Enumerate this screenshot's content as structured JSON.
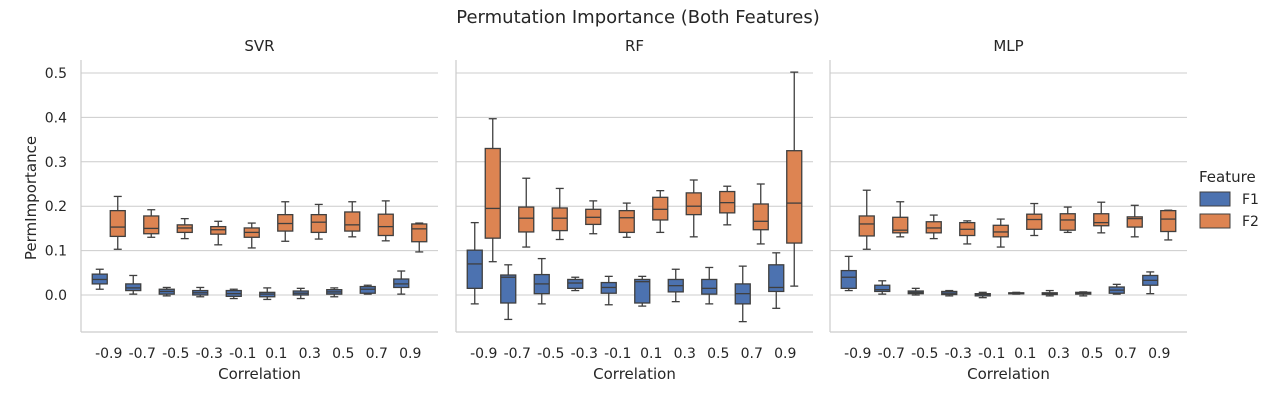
{
  "chart_data": {
    "type": "box",
    "title": "Permutation Importance (Both Features)",
    "xlabel": "Correlation",
    "ylabel": "PermImportance",
    "categories": [
      "-0.9",
      "-0.7",
      "-0.5",
      "-0.3",
      "-0.1",
      "0.1",
      "0.3",
      "0.5",
      "0.7",
      "0.9"
    ],
    "yticks": [
      "0.0",
      "0.1",
      "0.2",
      "0.3",
      "0.4",
      "0.5"
    ],
    "ylim": [
      -0.085,
      0.53
    ],
    "grid": "horizontal",
    "legend": {
      "title": "Feature",
      "placement": "right",
      "entries": [
        "F1",
        "F2"
      ]
    },
    "colors": {
      "F1": "#4c72b0",
      "F2": "#dd8452"
    },
    "panels": [
      {
        "title": "SVR",
        "series": [
          {
            "name": "F1",
            "boxes": [
              {
                "wlo": 0.013,
                "q1": 0.025,
                "med": 0.035,
                "q3": 0.047,
                "whi": 0.058
              },
              {
                "wlo": 0.002,
                "q1": 0.01,
                "med": 0.016,
                "q3": 0.025,
                "whi": 0.044
              },
              {
                "wlo": -0.002,
                "q1": 0.002,
                "med": 0.008,
                "q3": 0.013,
                "whi": 0.017
              },
              {
                "wlo": -0.004,
                "q1": 0.0,
                "med": 0.005,
                "q3": 0.01,
                "whi": 0.017
              },
              {
                "wlo": -0.008,
                "q1": -0.003,
                "med": 0.003,
                "q3": 0.01,
                "whi": 0.013
              },
              {
                "wlo": -0.01,
                "q1": -0.004,
                "med": 0.002,
                "q3": 0.006,
                "whi": 0.016
              },
              {
                "wlo": -0.008,
                "q1": 0.0,
                "med": 0.004,
                "q3": 0.009,
                "whi": 0.015
              },
              {
                "wlo": -0.004,
                "q1": 0.002,
                "med": 0.007,
                "q3": 0.012,
                "whi": 0.016
              },
              {
                "wlo": 0.002,
                "q1": 0.004,
                "med": 0.013,
                "q3": 0.019,
                "whi": 0.022
              },
              {
                "wlo": 0.002,
                "q1": 0.017,
                "med": 0.025,
                "q3": 0.036,
                "whi": 0.054
              }
            ]
          },
          {
            "name": "F2",
            "boxes": [
              {
                "wlo": 0.103,
                "q1": 0.132,
                "med": 0.153,
                "q3": 0.19,
                "whi": 0.222
              },
              {
                "wlo": 0.13,
                "q1": 0.138,
                "med": 0.15,
                "q3": 0.178,
                "whi": 0.192
              },
              {
                "wlo": 0.127,
                "q1": 0.141,
                "med": 0.151,
                "q3": 0.158,
                "whi": 0.172
              },
              {
                "wlo": 0.113,
                "q1": 0.137,
                "med": 0.147,
                "q3": 0.154,
                "whi": 0.166
              },
              {
                "wlo": 0.106,
                "q1": 0.13,
                "med": 0.141,
                "q3": 0.151,
                "whi": 0.162
              },
              {
                "wlo": 0.121,
                "q1": 0.144,
                "med": 0.161,
                "q3": 0.181,
                "whi": 0.21
              },
              {
                "wlo": 0.126,
                "q1": 0.141,
                "med": 0.164,
                "q3": 0.181,
                "whi": 0.204
              },
              {
                "wlo": 0.131,
                "q1": 0.144,
                "med": 0.158,
                "q3": 0.187,
                "whi": 0.21
              },
              {
                "wlo": 0.122,
                "q1": 0.134,
                "med": 0.154,
                "q3": 0.182,
                "whi": 0.212
              },
              {
                "wlo": 0.097,
                "q1": 0.12,
                "med": 0.149,
                "q3": 0.16,
                "whi": 0.162
              }
            ]
          }
        ]
      },
      {
        "title": "RF",
        "series": [
          {
            "name": "F1",
            "boxes": [
              {
                "wlo": -0.02,
                "q1": 0.015,
                "med": 0.07,
                "q3": 0.101,
                "whi": 0.163
              },
              {
                "wlo": -0.055,
                "q1": -0.018,
                "med": 0.04,
                "q3": 0.045,
                "whi": 0.068
              },
              {
                "wlo": -0.02,
                "q1": 0.003,
                "med": 0.025,
                "q3": 0.046,
                "whi": 0.082
              },
              {
                "wlo": 0.01,
                "q1": 0.015,
                "med": 0.027,
                "q3": 0.035,
                "whi": 0.04
              },
              {
                "wlo": -0.022,
                "q1": 0.004,
                "med": 0.017,
                "q3": 0.028,
                "whi": 0.042
              },
              {
                "wlo": -0.025,
                "q1": -0.018,
                "med": 0.03,
                "q3": 0.035,
                "whi": 0.042
              },
              {
                "wlo": -0.015,
                "q1": 0.007,
                "med": 0.021,
                "q3": 0.035,
                "whi": 0.058
              },
              {
                "wlo": -0.02,
                "q1": 0.002,
                "med": 0.015,
                "q3": 0.035,
                "whi": 0.062
              },
              {
                "wlo": -0.06,
                "q1": -0.02,
                "med": 0.003,
                "q3": 0.025,
                "whi": 0.065
              },
              {
                "wlo": -0.03,
                "q1": 0.008,
                "med": 0.017,
                "q3": 0.068,
                "whi": 0.095
              }
            ]
          },
          {
            "name": "F2",
            "boxes": [
              {
                "wlo": 0.075,
                "q1": 0.128,
                "med": 0.195,
                "q3": 0.33,
                "whi": 0.397
              },
              {
                "wlo": 0.108,
                "q1": 0.142,
                "med": 0.173,
                "q3": 0.198,
                "whi": 0.263
              },
              {
                "wlo": 0.125,
                "q1": 0.145,
                "med": 0.173,
                "q3": 0.196,
                "whi": 0.24
              },
              {
                "wlo": 0.138,
                "q1": 0.159,
                "med": 0.175,
                "q3": 0.193,
                "whi": 0.212
              },
              {
                "wlo": 0.13,
                "q1": 0.141,
                "med": 0.174,
                "q3": 0.19,
                "whi": 0.207
              },
              {
                "wlo": 0.141,
                "q1": 0.169,
                "med": 0.193,
                "q3": 0.22,
                "whi": 0.235
              },
              {
                "wlo": 0.131,
                "q1": 0.181,
                "med": 0.2,
                "q3": 0.23,
                "whi": 0.259
              },
              {
                "wlo": 0.158,
                "q1": 0.185,
                "med": 0.208,
                "q3": 0.233,
                "whi": 0.245
              },
              {
                "wlo": 0.115,
                "q1": 0.147,
                "med": 0.166,
                "q3": 0.205,
                "whi": 0.25
              },
              {
                "wlo": 0.02,
                "q1": 0.117,
                "med": 0.207,
                "q3": 0.325,
                "whi": 0.502
              }
            ]
          }
        ]
      },
      {
        "title": "MLP",
        "series": [
          {
            "name": "F1",
            "boxes": [
              {
                "wlo": 0.01,
                "q1": 0.015,
                "med": 0.04,
                "q3": 0.055,
                "whi": 0.087
              },
              {
                "wlo": 0.002,
                "q1": 0.008,
                "med": 0.012,
                "q3": 0.022,
                "whi": 0.032
              },
              {
                "wlo": 0.0,
                "q1": 0.003,
                "med": 0.006,
                "q3": 0.009,
                "whi": 0.015
              },
              {
                "wlo": -0.002,
                "q1": 0.001,
                "med": 0.004,
                "q3": 0.008,
                "whi": 0.01
              },
              {
                "wlo": -0.006,
                "q1": -0.002,
                "med": 0.001,
                "q3": 0.003,
                "whi": 0.006
              },
              {
                "wlo": 0.002,
                "q1": 0.003,
                "med": 0.004,
                "q3": 0.005,
                "whi": 0.006
              },
              {
                "wlo": -0.002,
                "q1": 0.001,
                "med": 0.003,
                "q3": 0.005,
                "whi": 0.01
              },
              {
                "wlo": -0.002,
                "q1": 0.002,
                "med": 0.004,
                "q3": 0.006,
                "whi": 0.007
              },
              {
                "wlo": 0.002,
                "q1": 0.004,
                "med": 0.011,
                "q3": 0.018,
                "whi": 0.024
              },
              {
                "wlo": 0.003,
                "q1": 0.022,
                "med": 0.033,
                "q3": 0.044,
                "whi": 0.052
              }
            ]
          },
          {
            "name": "F2",
            "boxes": [
              {
                "wlo": 0.103,
                "q1": 0.133,
                "med": 0.16,
                "q3": 0.178,
                "whi": 0.236
              },
              {
                "wlo": 0.131,
                "q1": 0.14,
                "med": 0.146,
                "q3": 0.175,
                "whi": 0.21
              },
              {
                "wlo": 0.127,
                "q1": 0.14,
                "med": 0.151,
                "q3": 0.165,
                "whi": 0.18
              },
              {
                "wlo": 0.115,
                "q1": 0.134,
                "med": 0.148,
                "q3": 0.163,
                "whi": 0.167
              },
              {
                "wlo": 0.108,
                "q1": 0.131,
                "med": 0.142,
                "q3": 0.157,
                "whi": 0.171
              },
              {
                "wlo": 0.134,
                "q1": 0.148,
                "med": 0.17,
                "q3": 0.182,
                "whi": 0.206
              },
              {
                "wlo": 0.141,
                "q1": 0.146,
                "med": 0.169,
                "q3": 0.183,
                "whi": 0.198
              },
              {
                "wlo": 0.14,
                "q1": 0.156,
                "med": 0.163,
                "q3": 0.183,
                "whi": 0.209
              },
              {
                "wlo": 0.131,
                "q1": 0.153,
                "med": 0.172,
                "q3": 0.176,
                "whi": 0.202
              },
              {
                "wlo": 0.124,
                "q1": 0.143,
                "med": 0.171,
                "q3": 0.19,
                "whi": 0.191
              }
            ]
          }
        ]
      }
    ]
  }
}
